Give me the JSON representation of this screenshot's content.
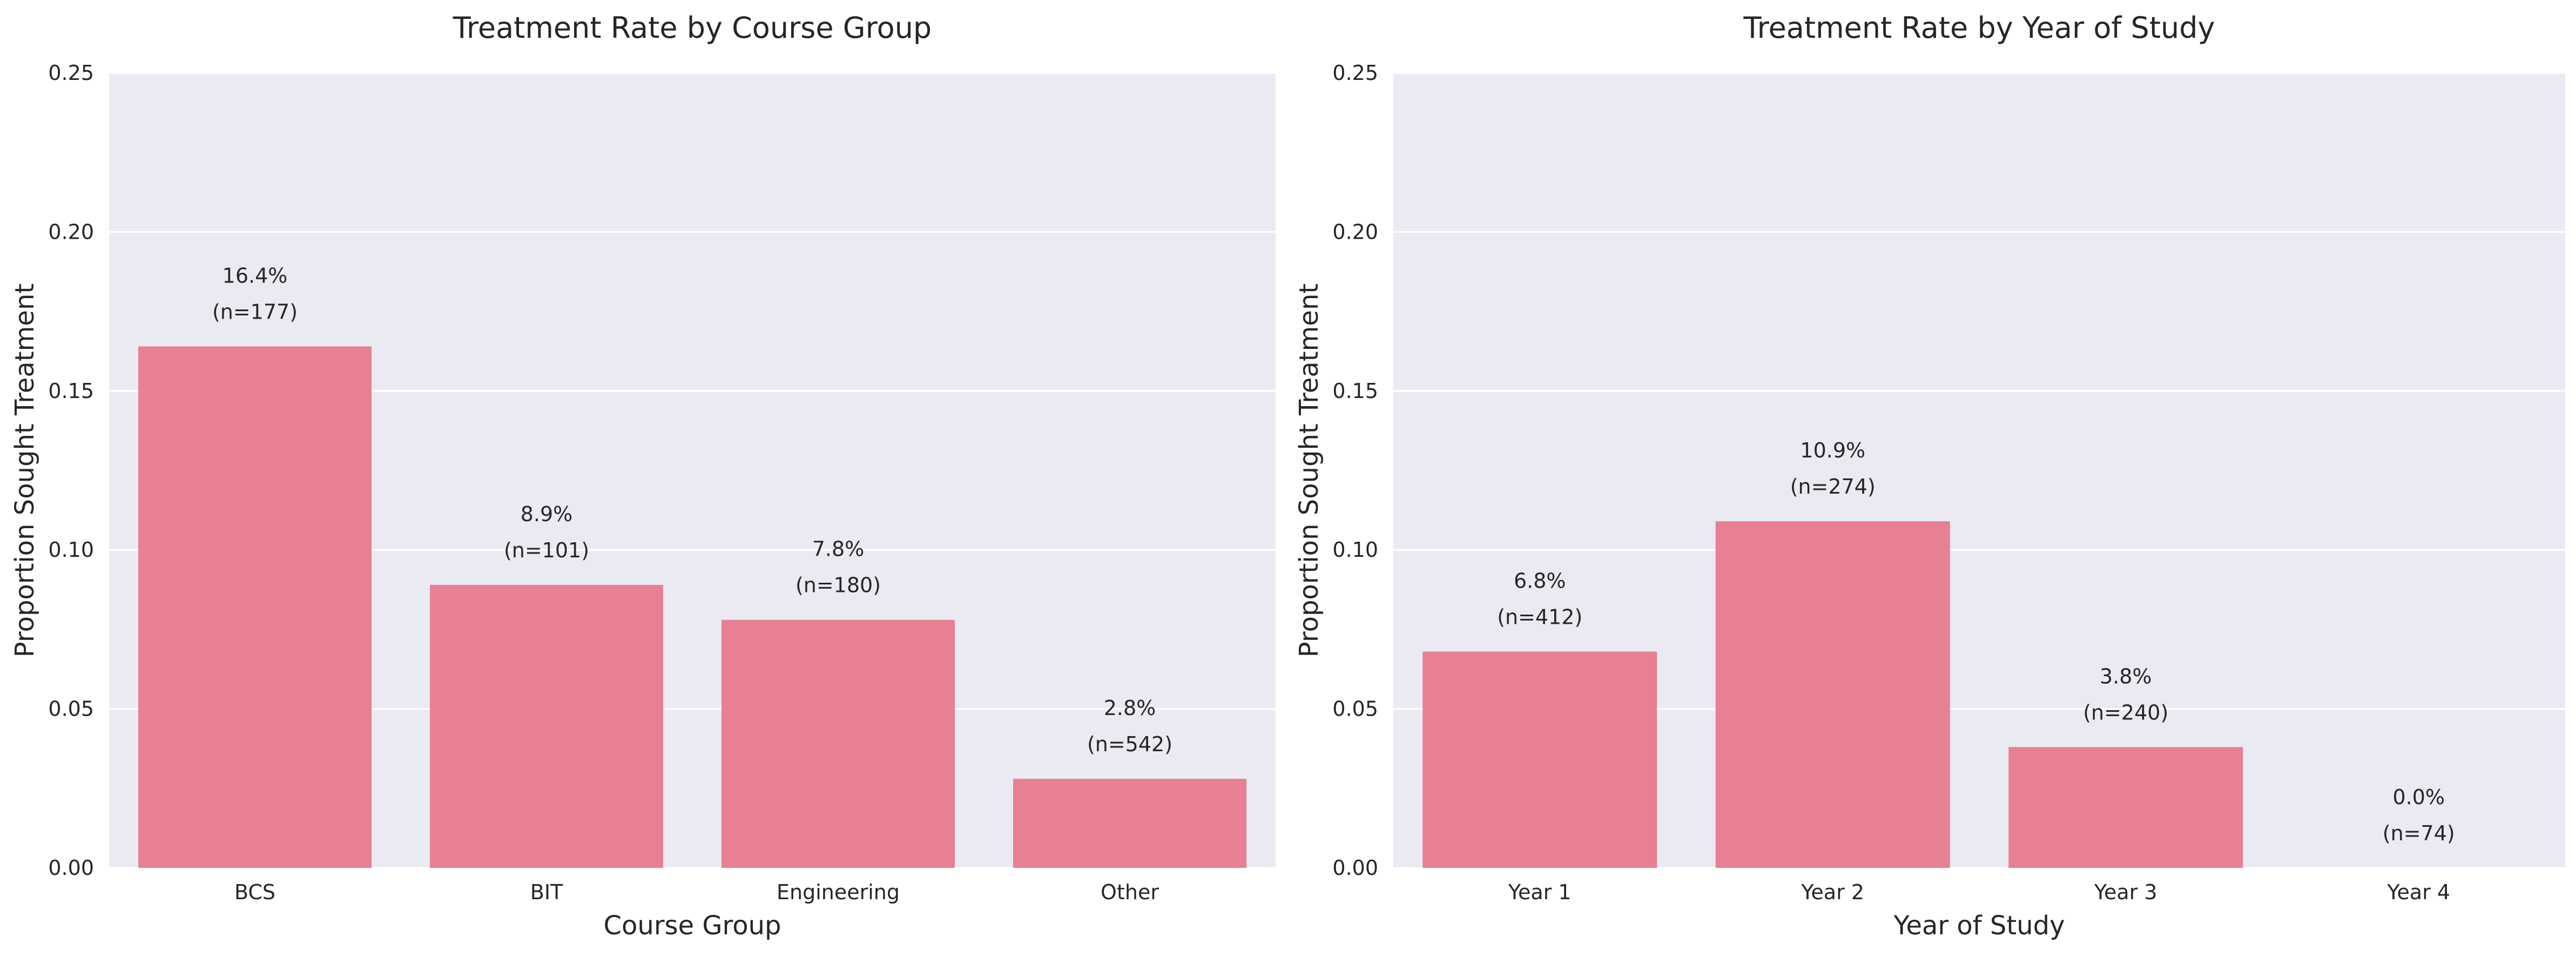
{
  "chart_data": [
    {
      "type": "bar",
      "title": "Treatment Rate by Course Group",
      "xlabel": "Course Group",
      "ylabel": "Proportion Sought Treatment",
      "categories": [
        "BCS",
        "BIT",
        "Engineering",
        "Other"
      ],
      "values": [
        0.164,
        0.089,
        0.078,
        0.028
      ],
      "value_labels": [
        "16.4%",
        "8.9%",
        "7.8%",
        "2.8%"
      ],
      "n_labels": [
        "(n=177)",
        "(n=101)",
        "(n=180)",
        "(n=542)"
      ],
      "ylim": [
        0,
        0.25
      ],
      "yticks": [
        "0.00",
        "0.05",
        "0.10",
        "0.15",
        "0.20",
        "0.25"
      ],
      "grid": true,
      "bar_color": "#e78093",
      "background_color": "#eaeaf2"
    },
    {
      "type": "bar",
      "title": "Treatment Rate by Year of Study",
      "xlabel": "Year of Study",
      "ylabel": "Proportion Sought Treatment",
      "categories": [
        "Year 1",
        "Year 2",
        "Year 3",
        "Year 4"
      ],
      "values": [
        0.068,
        0.109,
        0.038,
        0.0
      ],
      "value_labels": [
        "6.8%",
        "10.9%",
        "3.8%",
        "0.0%"
      ],
      "n_labels": [
        "(n=412)",
        "(n=274)",
        "(n=240)",
        "(n=74)"
      ],
      "ylim": [
        0,
        0.25
      ],
      "yticks": [
        "0.00",
        "0.05",
        "0.10",
        "0.15",
        "0.20",
        "0.25"
      ],
      "grid": true,
      "bar_color": "#e78093",
      "background_color": "#eaeaf2"
    }
  ]
}
